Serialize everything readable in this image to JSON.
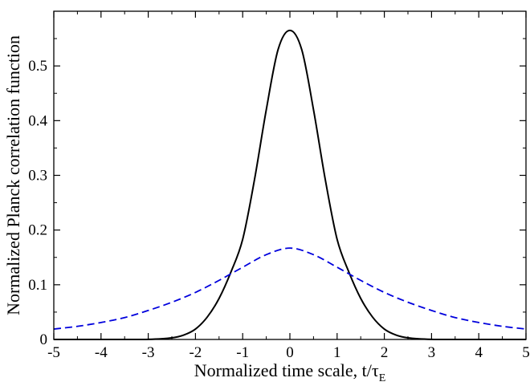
{
  "chart_data": {
    "type": "line",
    "title": "",
    "xlabel": "Normalized time scale, t/τ",
    "xlabel_subscript": "E",
    "ylabel": "Normalized Planck correlation function",
    "xlim": [
      -5,
      5
    ],
    "ylim": [
      0,
      0.6
    ],
    "xticks": [
      -5,
      -4,
      -3,
      -2,
      -1,
      0,
      1,
      2,
      3,
      4,
      5
    ],
    "xtick_labels": [
      "-5",
      "-4",
      "-3",
      "-2",
      "-1",
      "0",
      "1",
      "2",
      "3",
      "4",
      "5"
    ],
    "yticks": [
      0,
      0.1,
      0.2,
      0.3,
      0.4,
      0.5
    ],
    "ytick_labels": [
      "0",
      "0.1",
      "0.2",
      "0.3",
      "0.4",
      "0.5"
    ],
    "grid": false,
    "legend": "none",
    "series": [
      {
        "style": "solid",
        "color": "#000000",
        "x": [
          -5,
          -4.5,
          -4,
          -3.5,
          -3,
          -2.5,
          -2.25,
          -2,
          -1.75,
          -1.5,
          -1.25,
          -1,
          -0.75,
          -0.5,
          -0.25,
          0,
          0.25,
          0.5,
          0.75,
          1,
          1.25,
          1.5,
          1.75,
          2,
          2.25,
          2.5,
          3,
          3.5,
          4,
          4.5,
          5
        ],
        "y": [
          0,
          0,
          0,
          0,
          0.0002,
          0.003,
          0.008,
          0.019,
          0.041,
          0.075,
          0.123,
          0.183,
          0.292,
          0.42,
          0.53,
          0.565,
          0.53,
          0.42,
          0.292,
          0.183,
          0.123,
          0.075,
          0.041,
          0.019,
          0.008,
          0.003,
          0.0002,
          0,
          0,
          0,
          0
        ]
      },
      {
        "style": "dashed",
        "color": "#0000dd",
        "x": [
          -5,
          -4.5,
          -4,
          -3.5,
          -3,
          -2.5,
          -2,
          -1.5,
          -1,
          -0.5,
          0,
          0.5,
          1,
          1.5,
          2,
          2.5,
          3,
          3.5,
          4,
          4.5,
          5
        ],
        "y": [
          0.019,
          0.024,
          0.031,
          0.04,
          0.053,
          0.068,
          0.086,
          0.108,
          0.132,
          0.155,
          0.167,
          0.155,
          0.132,
          0.108,
          0.086,
          0.068,
          0.053,
          0.04,
          0.031,
          0.024,
          0.019
        ]
      }
    ]
  }
}
